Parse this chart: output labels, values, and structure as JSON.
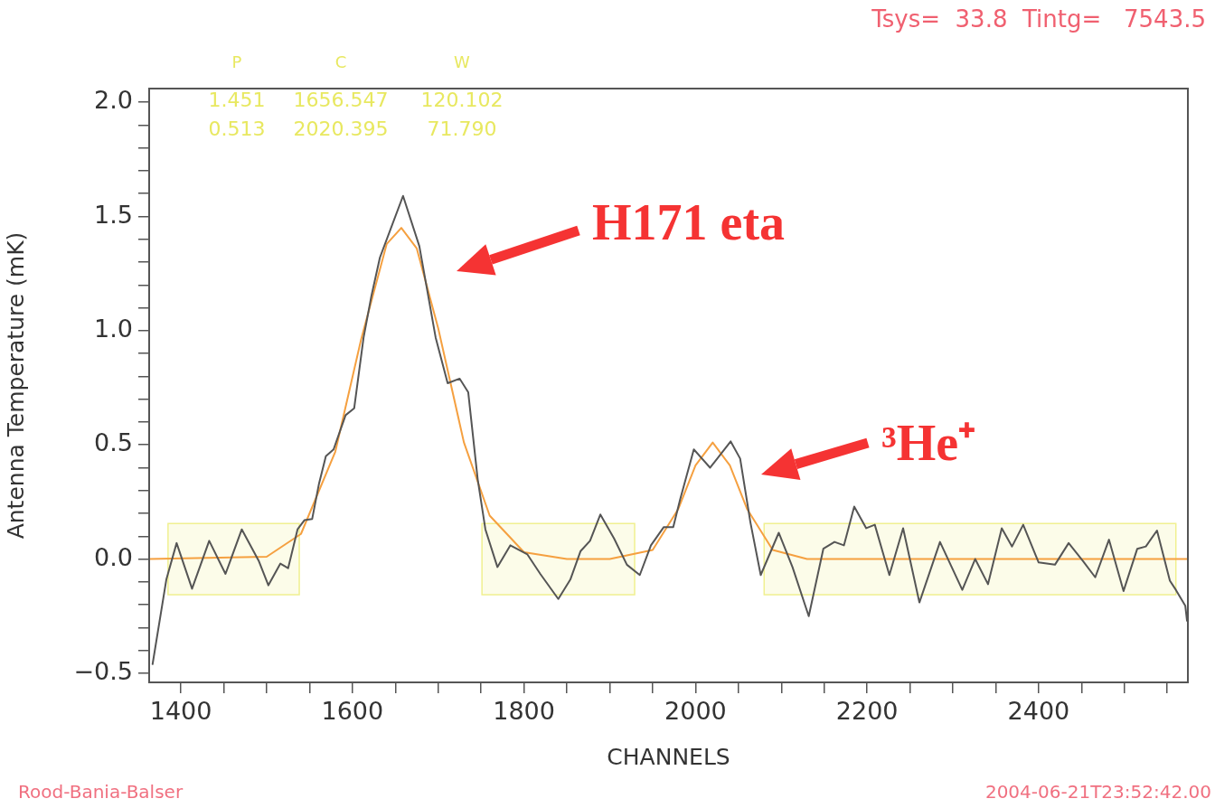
{
  "chart_data": {
    "type": "line",
    "xlabel": "CHANNELS",
    "ylabel": "Antenna Temperature (mK)",
    "xlim": [
      1363,
      2574
    ],
    "ylim": [
      -0.54,
      2.06
    ],
    "xticks": [
      {
        "value": 1400,
        "label": "1400"
      },
      {
        "value": 1450,
        "label": null
      },
      {
        "value": 1500,
        "label": null
      },
      {
        "value": 1550,
        "label": null
      },
      {
        "value": 1600,
        "label": "1600"
      },
      {
        "value": 1650,
        "label": null
      },
      {
        "value": 1700,
        "label": null
      },
      {
        "value": 1750,
        "label": null
      },
      {
        "value": 1800,
        "label": "1800"
      },
      {
        "value": 1850,
        "label": null
      },
      {
        "value": 1900,
        "label": null
      },
      {
        "value": 1950,
        "label": null
      },
      {
        "value": 2000,
        "label": "2000"
      },
      {
        "value": 2050,
        "label": null
      },
      {
        "value": 2100,
        "label": null
      },
      {
        "value": 2150,
        "label": null
      },
      {
        "value": 2200,
        "label": "2200"
      },
      {
        "value": 2250,
        "label": null
      },
      {
        "value": 2300,
        "label": null
      },
      {
        "value": 2350,
        "label": null
      },
      {
        "value": 2400,
        "label": "2400"
      },
      {
        "value": 2450,
        "label": null
      },
      {
        "value": 2500,
        "label": null
      },
      {
        "value": 2550,
        "label": null
      }
    ],
    "yticks": [
      {
        "value": -0.5,
        "label": "−0.5"
      },
      {
        "value": -0.4,
        "label": null
      },
      {
        "value": -0.3,
        "label": null
      },
      {
        "value": -0.2,
        "label": null
      },
      {
        "value": -0.1,
        "label": null
      },
      {
        "value": 0,
        "label": "0.0"
      },
      {
        "value": 0.1,
        "label": null
      },
      {
        "value": 0.2,
        "label": null
      },
      {
        "value": 0.3,
        "label": null
      },
      {
        "value": 0.4,
        "label": null
      },
      {
        "value": 0.5,
        "label": "0.5"
      },
      {
        "value": 0.6,
        "label": null
      },
      {
        "value": 0.7,
        "label": null
      },
      {
        "value": 0.8,
        "label": null
      },
      {
        "value": 0.9,
        "label": null
      },
      {
        "value": 1.0,
        "label": "1.0"
      },
      {
        "value": 1.1,
        "label": null
      },
      {
        "value": 1.2,
        "label": null
      },
      {
        "value": 1.3,
        "label": null
      },
      {
        "value": 1.4,
        "label": null
      },
      {
        "value": 1.5,
        "label": "1.5"
      },
      {
        "value": 1.6,
        "label": null
      },
      {
        "value": 1.7,
        "label": null
      },
      {
        "value": 1.8,
        "label": null
      },
      {
        "value": 1.9,
        "label": null
      },
      {
        "value": 2.0,
        "label": "2.0"
      }
    ],
    "grid": false,
    "legend": false,
    "marker": "none",
    "line_style": "solid",
    "series": [
      {
        "color": "#555555",
        "x": [
          1367,
          1383,
          1395,
          1413,
          1433,
          1452,
          1471,
          1491,
          1502,
          1516,
          1525,
          1536,
          1544,
          1553,
          1561,
          1569,
          1578,
          1592,
          1602,
          1613,
          1622,
          1632,
          1659,
          1678,
          1697,
          1711,
          1725,
          1735,
          1746,
          1755,
          1769,
          1784,
          1804,
          1819,
          1840,
          1854,
          1866,
          1877,
          1889,
          1905,
          1920,
          1935,
          1948,
          1963,
          1974,
          1982,
          1998,
          2017,
          2041,
          2052,
          2064,
          2076,
          2097,
          2113,
          2132,
          2149,
          2162,
          2173,
          2185,
          2199,
          2209,
          2226,
          2242,
          2261,
          2285,
          2311,
          2326,
          2341,
          2357,
          2369,
          2382,
          2400,
          2419,
          2435,
          2452,
          2466,
          2482,
          2499,
          2515,
          2525,
          2538,
          2553,
          2560,
          2571,
          2573
        ],
        "values": [
          -0.46,
          -0.09,
          0.07,
          -0.13,
          0.08,
          -0.065,
          0.13,
          -0.01,
          -0.115,
          -0.02,
          -0.04,
          0.13,
          0.17,
          0.175,
          0.33,
          0.45,
          0.48,
          0.63,
          0.66,
          0.97,
          1.15,
          1.32,
          1.59,
          1.37,
          0.97,
          0.77,
          0.79,
          0.73,
          0.35,
          0.13,
          -0.035,
          0.06,
          0.02,
          -0.065,
          -0.175,
          -0.09,
          0.035,
          0.08,
          0.195,
          0.09,
          -0.025,
          -0.07,
          0.06,
          0.14,
          0.14,
          0.26,
          0.48,
          0.4,
          0.515,
          0.44,
          0.16,
          -0.07,
          0.115,
          -0.035,
          -0.25,
          0.045,
          0.075,
          0.06,
          0.23,
          0.135,
          0.15,
          -0.07,
          0.135,
          -0.19,
          0.075,
          -0.135,
          0.0,
          -0.11,
          0.135,
          0.055,
          0.15,
          -0.015,
          -0.025,
          0.07,
          -0.01,
          -0.08,
          0.085,
          -0.14,
          0.045,
          0.055,
          0.125,
          -0.095,
          -0.135,
          -0.205,
          -0.27
        ]
      },
      {
        "color": "#f5a040",
        "x": [
          1363,
          1500,
          1540,
          1580,
          1610,
          1640,
          1657,
          1675,
          1700,
          1730,
          1760,
          1800,
          1850,
          1900,
          1950,
          1980,
          2000,
          2020,
          2040,
          2060,
          2090,
          2130,
          2574
        ],
        "values": [
          0,
          0.01,
          0.11,
          0.47,
          0.96,
          1.38,
          1.45,
          1.36,
          1.01,
          0.51,
          0.19,
          0.03,
          0,
          0,
          0.04,
          0.22,
          0.41,
          0.51,
          0.41,
          0.22,
          0.04,
          0,
          0
        ]
      }
    ],
    "bands": [
      {
        "axis": "x",
        "from": 1385,
        "to": 1538,
        "color": "#f0f090"
      },
      {
        "axis": "x",
        "from": 1751,
        "to": 1929,
        "color": "#f0f090"
      },
      {
        "axis": "x",
        "from": 2080,
        "to": 2560,
        "color": "#f0f090"
      }
    ],
    "annotations": [
      "Tsys=  33.8  Tintg=   7543.5",
      "P",
      "C",
      "W",
      "1.451",
      "1656.547",
      "120.102",
      "0.513",
      "2020.395",
      "71.790",
      "Rood-Bania-Balser",
      "2004-06-21T23:52:42.00",
      "H171 eta",
      "³He⁺"
    ]
  }
}
